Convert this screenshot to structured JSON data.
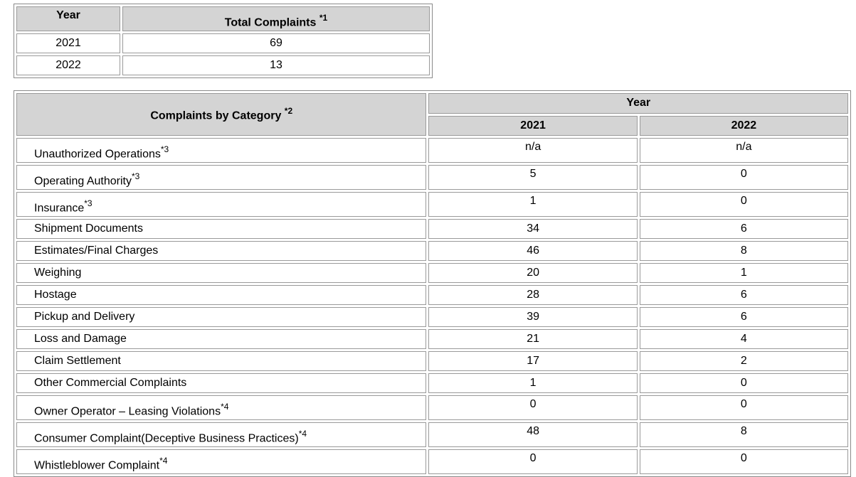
{
  "totals": {
    "headers": {
      "year": "Year",
      "total": "Total Complaints",
      "total_note": "*1"
    },
    "rows": [
      {
        "year": "2021",
        "total": "69"
      },
      {
        "year": "2022",
        "total": "13"
      }
    ]
  },
  "category": {
    "header": {
      "label": "Complaints by Category",
      "note": "*2",
      "year": "Year",
      "y2021": "2021",
      "y2022": "2022"
    },
    "rows": [
      {
        "label": "Unauthorized Operations",
        "note": "*3",
        "v2021": "n/a",
        "v2022": "n/a"
      },
      {
        "label": "Operating Authority",
        "note": "*3",
        "v2021": "5",
        "v2022": "0"
      },
      {
        "label": "Insurance",
        "note": "*3",
        "v2021": "1",
        "v2022": "0"
      },
      {
        "label": "Shipment Documents",
        "note": "",
        "v2021": "34",
        "v2022": "6"
      },
      {
        "label": "Estimates/Final Charges",
        "note": "",
        "v2021": "46",
        "v2022": "8"
      },
      {
        "label": "Weighing",
        "note": "",
        "v2021": "20",
        "v2022": "1"
      },
      {
        "label": "Hostage",
        "note": "",
        "v2021": "28",
        "v2022": "6"
      },
      {
        "label": "Pickup and Delivery",
        "note": "",
        "v2021": "39",
        "v2022": "6"
      },
      {
        "label": "Loss and Damage",
        "note": "",
        "v2021": "21",
        "v2022": "4"
      },
      {
        "label": "Claim Settlement",
        "note": "",
        "v2021": "17",
        "v2022": "2"
      },
      {
        "label": "Other Commercial Complaints",
        "note": "",
        "v2021": "1",
        "v2022": "0"
      },
      {
        "label": "Owner Operator – Leasing Violations",
        "note": "*4",
        "v2021": "0",
        "v2022": "0"
      },
      {
        "label": "Consumer Complaint(Deceptive Business Practices)",
        "note": "*4",
        "v2021": "48",
        "v2022": "8"
      },
      {
        "label": "Whistleblower Complaint",
        "note": "*4",
        "v2021": "0",
        "v2022": "0"
      }
    ]
  }
}
